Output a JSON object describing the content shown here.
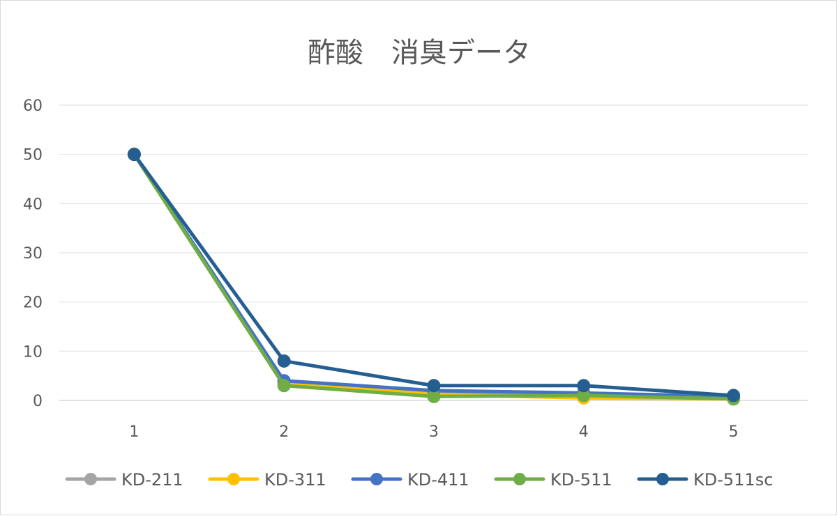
{
  "chart_data": {
    "type": "line",
    "title": "酢酸　消臭データ",
    "xlabel": "",
    "ylabel": "",
    "categories": [
      "1",
      "2",
      "3",
      "4",
      "5"
    ],
    "ylim": [
      0,
      60
    ],
    "yticks": [
      "0",
      "10",
      "20",
      "30",
      "40",
      "50",
      "60"
    ],
    "grid": true,
    "legend_position": "bottom",
    "series": [
      {
        "name": "KD-211",
        "color": "#a5a5a5",
        "values": [
          50,
          3.5,
          1.5,
          1.0,
          0.5
        ]
      },
      {
        "name": "KD-311",
        "color": "#ffc000",
        "values": [
          50,
          3.5,
          1.2,
          0.5,
          0.3
        ]
      },
      {
        "name": "KD-411",
        "color": "#4472c4",
        "values": [
          50,
          4.0,
          2.0,
          1.5,
          0.8
        ]
      },
      {
        "name": "KD-511",
        "color": "#70ad47",
        "values": [
          50,
          3.0,
          0.8,
          1.0,
          0.3
        ]
      },
      {
        "name": "KD-511sc",
        "color": "#255e91",
        "values": [
          50,
          8.0,
          3.0,
          3.0,
          1.0
        ]
      }
    ]
  }
}
